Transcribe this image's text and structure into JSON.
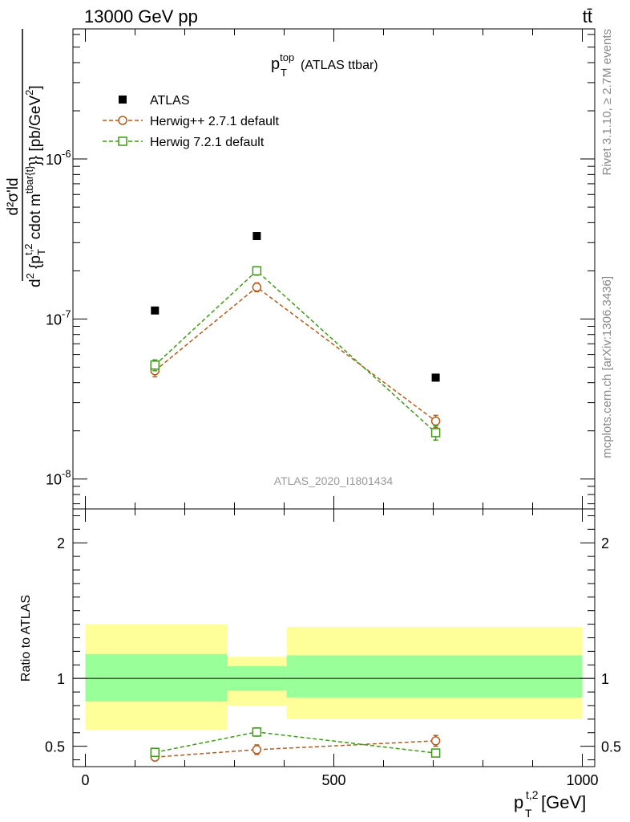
{
  "header": {
    "left": "13000 GeV pp",
    "right": "tt̄"
  },
  "side_labels": {
    "rivet": "Rivet 3.1.10, ≥ 2.7M events",
    "mcplots": "mcplots.cern.ch [arXiv:1306.3436]"
  },
  "chart_data": [
    {
      "type": "scatter",
      "title": "p_T^top (ATLAS ttbar)",
      "title_parts": {
        "main": "p",
        "sup": "top",
        "sub": "T",
        "rest": " (ATLAS ttbar)"
      },
      "ylabel": "d²σ'ld / d² {p_T^{t,2} cdot m^{tbar{t}}} [pb/GeV²]",
      "ylabel_parts": {
        "numer": "d²σ'ld",
        "denom_a": "d",
        "denom_b": "2",
        "denom_c": " {p",
        "denom_d": "T",
        "denom_e": "t,2",
        "denom_f": " cdot m",
        "denom_g": "tbar{t}",
        "denom_h": "}} [pb/GeV",
        "denom_i": "2",
        "denom_j": "]"
      },
      "yscale": "log",
      "ylim": [
        6.5e-09,
        6.5e-06
      ],
      "xlim": [
        -25,
        1025
      ],
      "y_tick_labels": [
        {
          "base": "10",
          "exp": "-6",
          "value": 1e-06
        },
        {
          "base": "10",
          "exp": "-7",
          "value": 1e-07
        },
        {
          "base": "10",
          "exp": "-8",
          "value": 1e-08
        }
      ],
      "watermark": "ATLAS_2020_I1801434",
      "legend_position": "top-left",
      "series": [
        {
          "name": "ATLAS",
          "marker": "filled-square",
          "color": "#000000",
          "x": [
            140,
            345,
            705
          ],
          "y": [
            1.13e-07,
            3.3e-07,
            4.3e-08
          ],
          "yerr": [
            0,
            0,
            0
          ]
        },
        {
          "name": "Herwig++ 2.7.1 default",
          "marker": "open-circle",
          "color": "#b35c1e",
          "x": [
            140,
            345,
            705
          ],
          "y": [
            4.75e-08,
            1.58e-07,
            2.3e-08
          ],
          "yerr": [
            4e-09,
            1e-08,
            2e-09
          ]
        },
        {
          "name": "Herwig 7.2.1 default",
          "marker": "open-square",
          "color": "#3f9a19",
          "x": [
            140,
            345,
            705
          ],
          "y": [
            5.15e-08,
            2e-07,
            1.95e-08
          ],
          "yerr": [
            4e-09,
            1.2e-08,
            2e-09
          ]
        }
      ]
    },
    {
      "type": "scatter",
      "ylabel": "Ratio to ATLAS",
      "xlabel": "p_T^{t,2} [GeV]",
      "xlabel_parts": {
        "main": "p",
        "sub": "T",
        "sup": "t,2",
        "rest": " [GeV]"
      },
      "xlim": [
        -25,
        1025
      ],
      "ylim": [
        0.35,
        2.25
      ],
      "x_tick_labels": [
        "0",
        "500",
        "1000"
      ],
      "x_ticks": [
        0,
        500,
        1000
      ],
      "y_tick_labels": [
        "2",
        "1",
        "0.5"
      ],
      "y_ticks": [
        2,
        1,
        0.5
      ],
      "reference_line": 1,
      "bands": [
        {
          "x0": 0,
          "x1": 285,
          "yellow": [
            0.62,
            1.4
          ],
          "green": [
            0.83,
            1.18
          ]
        },
        {
          "x0": 285,
          "x1": 405,
          "yellow": [
            0.8,
            1.16
          ],
          "green": [
            0.91,
            1.09
          ]
        },
        {
          "x0": 405,
          "x1": 1000,
          "yellow": [
            0.7,
            1.38
          ],
          "green": [
            0.86,
            1.17
          ]
        }
      ],
      "band_colors": {
        "yellow": "#ffff99",
        "green": "#99ff99"
      },
      "series": [
        {
          "name": "Herwig++ 2.7.1 default",
          "marker": "open-circle",
          "color": "#b35c1e",
          "x": [
            140,
            345,
            705
          ],
          "y": [
            0.42,
            0.475,
            0.54
          ],
          "yerr": [
            0.02,
            0.035,
            0.04
          ]
        },
        {
          "name": "Herwig 7.2.1 default",
          "marker": "open-square",
          "color": "#3f9a19",
          "x": [
            140,
            345,
            705
          ],
          "y": [
            0.455,
            0.605,
            0.45
          ],
          "yerr": [
            0.03,
            0.03,
            0.025
          ]
        }
      ]
    }
  ]
}
